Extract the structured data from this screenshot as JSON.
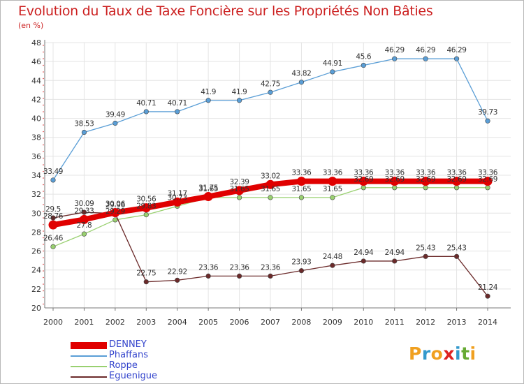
{
  "title": "Evolution du Taux de Taxe Foncière sur les Propriétés Non Bâties",
  "subtitle": "(en %)",
  "logo": {
    "text": [
      "P",
      "r",
      "o",
      "x",
      "i",
      "t",
      "i"
    ],
    "colors": [
      "#f0a020",
      "#3399cc",
      "#f0a020",
      "#dd2222",
      "#3399cc",
      "#66aa33",
      "#f0a020"
    ]
  },
  "chart_data": {
    "type": "line",
    "title": "Evolution du Taux de Taxe Foncière sur les Propriétés Non Bâties",
    "ylabel": "(en %)",
    "xlabel": "",
    "ylim": [
      20,
      48
    ],
    "y_ticks": [
      "20",
      "22",
      "24",
      "26",
      "28",
      "30",
      "32",
      "34",
      "36",
      "38",
      "40",
      "42",
      "44",
      "46",
      "48"
    ],
    "grid": true,
    "legend_position": "bottom-left",
    "categories": [
      "2000",
      "2001",
      "2002",
      "2003",
      "2004",
      "2005",
      "2006",
      "2007",
      "2008",
      "2009",
      "2010",
      "2011",
      "2012",
      "2013",
      "2014"
    ],
    "series": [
      {
        "name": "DENNEY",
        "color": "#e00000",
        "values": [
          28.76,
          29.33,
          30.06,
          30.56,
          31.17,
          31.75,
          32.39,
          33.02,
          33.36,
          33.36,
          33.36,
          33.36,
          33.36,
          33.36,
          33.36
        ],
        "labels": [
          "28.76",
          "29.33",
          "30.06",
          "30.56",
          "31.17",
          "31.75",
          "32.39",
          "33.02",
          "33.36",
          "33.36",
          "33.36",
          "33.36",
          "33.36",
          "33.36",
          "33.36"
        ]
      },
      {
        "name": "Phaffans",
        "color": "#5a9ed6",
        "values": [
          33.49,
          38.53,
          39.49,
          40.71,
          40.71,
          41.9,
          41.9,
          42.75,
          43.82,
          44.91,
          45.6,
          46.29,
          46.29,
          46.29,
          39.73
        ],
        "labels": [
          "33.49",
          "38.53",
          "39.49",
          "40.71",
          "40.71",
          "41.9",
          "41.9",
          "42.75",
          "43.82",
          "44.91",
          "45.6",
          "46.29",
          "46.29",
          "46.29",
          "39.73"
        ]
      },
      {
        "name": "Roppe",
        "color": "#99d070",
        "values": [
          26.46,
          27.8,
          29.29,
          29.83,
          30.73,
          31.65,
          31.65,
          31.65,
          31.65,
          31.65,
          32.69,
          32.69,
          32.69,
          32.69,
          32.69
        ],
        "labels": [
          "26.46",
          "27.8",
          "29.29",
          "29.83",
          "30.73",
          "31.65",
          "31.65",
          "31.65",
          "31.65",
          "31.65",
          "32.69",
          "32.69",
          "32.69",
          "32.69",
          "32.69"
        ]
      },
      {
        "name": "Eguenigue",
        "color": "#6b2a2a",
        "values": [
          29.5,
          30.09,
          29.96,
          22.75,
          22.92,
          23.36,
          23.36,
          23.36,
          23.93,
          24.48,
          24.94,
          24.94,
          25.43,
          25.43,
          21.24
        ],
        "labels": [
          "29.5",
          "30.09",
          "29.96",
          "22.75",
          "22.92",
          "23.36",
          "23.36",
          "23.36",
          "23.93",
          "24.48",
          "24.94",
          "24.94",
          "25.43",
          "25.43",
          "21.24"
        ]
      }
    ]
  }
}
